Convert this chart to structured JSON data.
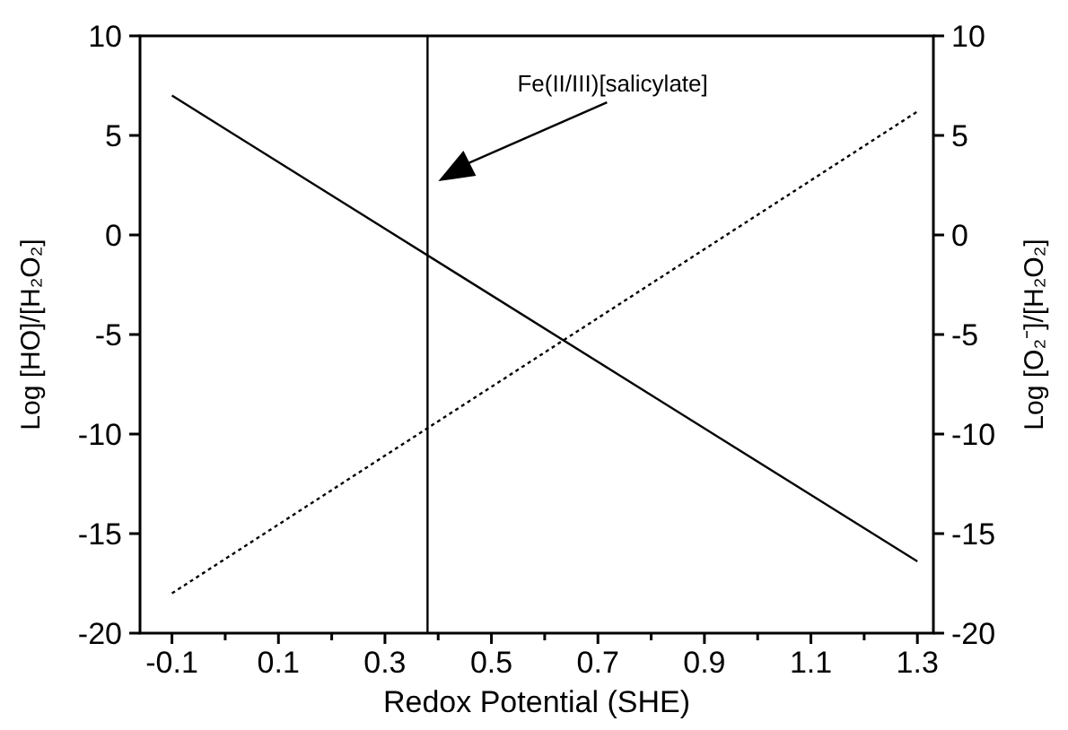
{
  "chart_data": {
    "type": "line",
    "xlabel": "Redox Potential (SHE)",
    "ylabel": "Log [HO]/[H₂O₂]",
    "y2label": "Log [O₂⁻]/[H₂O₂]",
    "xlim": [
      -0.16,
      1.33
    ],
    "ylim": [
      -20,
      10
    ],
    "y2lim": [
      -20,
      10
    ],
    "xticks": [
      -0.1,
      {
        "value": 0,
        "label": null
      },
      0.1,
      {
        "value": 0.2,
        "label": null
      },
      0.3,
      {
        "value": 0.4,
        "label": null
      },
      0.5,
      {
        "value": 0.6,
        "label": null
      },
      0.7,
      {
        "value": 0.8,
        "label": null
      },
      0.9,
      {
        "value": 1.0,
        "label": null
      },
      1.1,
      {
        "value": 1.2,
        "label": null
      },
      1.3
    ],
    "yticks": [
      -20,
      -15,
      -10,
      -5,
      0,
      5,
      10
    ],
    "y2ticks": [
      -20,
      -15,
      -10,
      -5,
      0,
      5,
      10
    ],
    "series": [
      {
        "color": "#000000",
        "values": [
          7,
          -16.4
        ],
        "line_style": "solid"
      },
      {
        "color": "#000000",
        "values": [
          -18,
          6.2
        ],
        "line_style": "dotted"
      }
    ],
    "ref_lines": [
      {
        "axis": "x",
        "value": 0.38,
        "color": "#000000"
      }
    ],
    "x": [
      -0.1,
      1.3
    ],
    "annotations": [
      "Fe(II/III)[salicylate]"
    ],
    "grid": false
  }
}
